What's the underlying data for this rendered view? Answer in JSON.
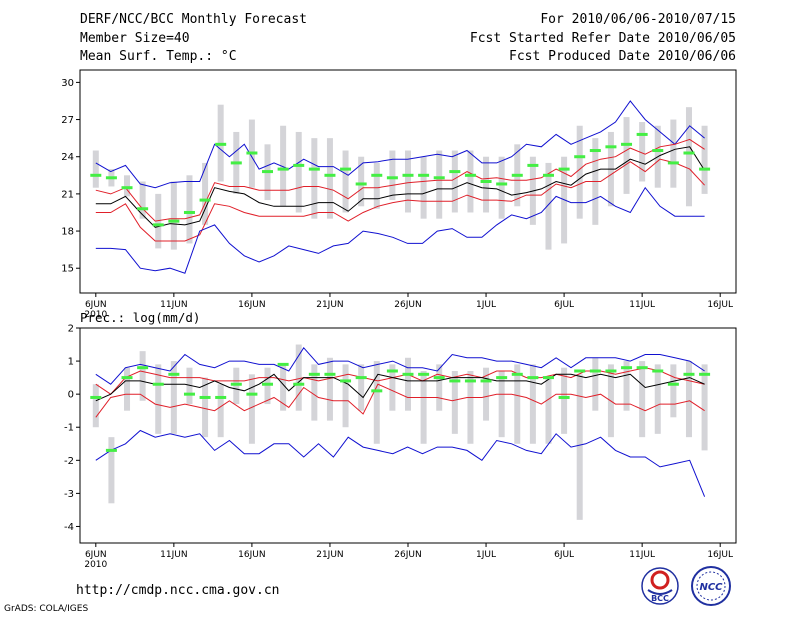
{
  "header": {
    "title": "DERF/NCC/BCC Monthly Forecast",
    "member_size": "Member Size=40",
    "variable": "Mean Surf. Temp.: °C",
    "period": "For 2010/06/06-2010/07/15",
    "fcst_refer": "Fcst Started Refer Date 2010/06/05",
    "fcst_produced": "Fcst Produced Date 2010/06/06"
  },
  "footer": {
    "url": "http://cmdp.ncc.cma.gov.cn",
    "credit": "GrADS: COLA/IGES",
    "logo_bcc": "BCC",
    "logo_ncc": "NCC"
  },
  "colors": {
    "median": "#000000",
    "inner": "#e0202a",
    "outer": "#1010d0",
    "bar": "#d4d4d8",
    "dash": "#44ee44"
  },
  "chart_data": [
    {
      "type": "line",
      "title": "Mean Surf. Temp.: °C",
      "x_tick_labels": [
        "6JUN",
        "11JUN",
        "16JUN",
        "21JUN",
        "26JUN",
        "1JUL",
        "6JUL",
        "11JUL",
        "16JUL"
      ],
      "x_year": "2010",
      "n_days": 40,
      "ylim": [
        13,
        31
      ],
      "yticks": [
        15,
        18,
        21,
        24,
        27,
        30
      ],
      "box_low": [
        21.5,
        21.6,
        20.8,
        19.0,
        16.6,
        16.5,
        17.0,
        18.5,
        22.0,
        21.0,
        21.5,
        20.5,
        20.0,
        19.5,
        19.0,
        19.0,
        19.5,
        20.0,
        19.8,
        20.5,
        19.5,
        19.0,
        19.0,
        19.5,
        19.5,
        19.5,
        19.0,
        20.0,
        18.5,
        16.5,
        17.0,
        19.0,
        18.5,
        20.0,
        21.0,
        22.0,
        21.5,
        21.5,
        20.0,
        21.0
      ],
      "box_high": [
        24.5,
        23.0,
        22.5,
        22.0,
        21.0,
        22.0,
        22.5,
        23.5,
        28.2,
        26.0,
        27.0,
        25.0,
        26.5,
        26.0,
        25.5,
        25.5,
        24.5,
        24.0,
        23.5,
        24.5,
        24.5,
        24.0,
        24.5,
        24.5,
        24.5,
        24.0,
        24.0,
        25.0,
        24.0,
        23.5,
        24.0,
        26.5,
        25.5,
        26.0,
        27.2,
        26.8,
        26.5,
        27.0,
        28.0,
        26.5
      ],
      "ensemble_mean": [
        22.5,
        22.3,
        21.5,
        19.8,
        18.5,
        18.8,
        19.5,
        20.5,
        25.0,
        23.5,
        24.3,
        22.8,
        23.0,
        23.3,
        23.0,
        22.5,
        23.0,
        21.8,
        22.5,
        22.3,
        22.5,
        22.5,
        22.3,
        22.8,
        22.5,
        22.0,
        21.8,
        22.5,
        23.3,
        22.5,
        23.0,
        24.0,
        24.5,
        24.8,
        25.0,
        25.8,
        24.5,
        23.5,
        24.3,
        23.0
      ],
      "series": [
        {
          "name": "max",
          "color": "outer",
          "values": [
            23.5,
            22.8,
            23.3,
            21.8,
            21.5,
            21.9,
            22.0,
            22.0,
            25.0,
            24.0,
            25.0,
            23.0,
            23.5,
            23.0,
            23.8,
            23.2,
            23.2,
            22.5,
            23.5,
            23.6,
            23.8,
            23.8,
            24.0,
            24.2,
            24.0,
            24.5,
            23.5,
            23.5,
            24.0,
            25.0,
            24.8,
            25.8,
            25.0,
            25.5,
            26.0,
            26.8,
            28.5,
            27.0,
            26.0,
            25.0,
            26.5,
            25.5
          ]
        },
        {
          "name": "upper",
          "color": "inner",
          "values": [
            21.3,
            21.0,
            21.5,
            20.0,
            18.8,
            19.0,
            19.0,
            19.3,
            21.9,
            21.6,
            21.6,
            21.3,
            21.3,
            21.3,
            21.6,
            21.6,
            21.3,
            20.6,
            21.5,
            21.5,
            21.7,
            21.9,
            22.0,
            22.1,
            22.1,
            22.8,
            22.2,
            22.3,
            22.1,
            22.1,
            22.3,
            23.0,
            22.4,
            23.4,
            23.8,
            24.0,
            24.7,
            24.2,
            24.8,
            25.0,
            25.4,
            24.6
          ]
        },
        {
          "name": "median",
          "color": "median",
          "values": [
            20.2,
            20.2,
            20.8,
            19.5,
            18.3,
            18.6,
            18.5,
            18.8,
            21.5,
            21.2,
            21.0,
            20.3,
            20.0,
            20.0,
            20.0,
            20.3,
            20.3,
            19.6,
            20.6,
            20.6,
            20.9,
            21.0,
            21.0,
            21.4,
            21.4,
            21.9,
            21.5,
            21.4,
            20.9,
            21.1,
            21.4,
            22.0,
            21.7,
            22.6,
            23.0,
            23.0,
            23.8,
            23.4,
            24.1,
            24.6,
            24.8,
            22.9
          ]
        },
        {
          "name": "lower",
          "color": "inner",
          "values": [
            19.5,
            19.5,
            20.2,
            18.3,
            17.2,
            17.2,
            17.2,
            17.7,
            20.2,
            20.0,
            19.5,
            19.2,
            19.2,
            19.2,
            19.2,
            19.5,
            19.5,
            18.8,
            19.5,
            20.0,
            20.3,
            20.5,
            20.4,
            20.4,
            20.4,
            20.9,
            20.5,
            20.5,
            20.4,
            20.9,
            20.9,
            21.8,
            21.5,
            22.0,
            22.0,
            22.8,
            23.6,
            22.8,
            23.8,
            23.5,
            23.0,
            21.7
          ]
        },
        {
          "name": "min",
          "color": "outer",
          "values": [
            16.6,
            16.6,
            16.5,
            15.0,
            14.8,
            15.0,
            14.6,
            18.0,
            18.5,
            17.0,
            16.0,
            15.5,
            16.0,
            16.8,
            16.5,
            16.2,
            16.8,
            17.0,
            18.0,
            17.8,
            17.5,
            17.0,
            17.0,
            18.0,
            18.2,
            17.5,
            17.5,
            18.5,
            19.3,
            19.0,
            19.5,
            20.8,
            20.3,
            20.3,
            20.8,
            20.0,
            19.5,
            21.5,
            20.0,
            19.2,
            19.2,
            19.2
          ]
        }
      ]
    },
    {
      "type": "line",
      "title": "Prec.: log(mm/d)",
      "x_tick_labels": [
        "6JUN",
        "11JUN",
        "16JUN",
        "21JUN",
        "26JUN",
        "1JUL",
        "6JUL",
        "11JUL",
        "16JUL"
      ],
      "x_year": "2010",
      "n_days": 40,
      "ylim": [
        -4.5,
        2
      ],
      "yticks": [
        -4,
        -3,
        -2,
        -1,
        0,
        1,
        2
      ],
      "box_low": [
        -1.0,
        -3.3,
        -0.5,
        -0.2,
        -1.2,
        -1.2,
        -0.3,
        -1.3,
        -1.3,
        -0.3,
        -1.5,
        -0.3,
        -0.5,
        -0.5,
        -0.8,
        -0.8,
        -1.0,
        -0.5,
        -1.5,
        -0.5,
        -0.5,
        -1.5,
        -0.5,
        -1.2,
        -1.5,
        -0.8,
        -1.3,
        -1.5,
        -1.5,
        -1.5,
        -1.2,
        -3.8,
        -0.5,
        -1.3,
        -0.5,
        -1.3,
        -1.2,
        -0.7,
        -1.3,
        -1.7
      ],
      "box_high": [
        0.3,
        -1.3,
        0.8,
        1.3,
        0.9,
        1.0,
        0.8,
        0.5,
        0.3,
        0.8,
        0.6,
        0.8,
        0.9,
        1.5,
        0.9,
        1.1,
        0.9,
        0.9,
        1.0,
        0.9,
        1.1,
        0.7,
        0.9,
        0.7,
        0.7,
        0.8,
        0.7,
        0.9,
        0.9,
        0.5,
        0.8,
        0.6,
        1.1,
        0.9,
        1.0,
        1.0,
        0.9,
        0.9,
        1.0,
        0.9
      ],
      "ensemble_mean": [
        -0.1,
        -1.7,
        0.5,
        0.8,
        0.3,
        0.6,
        0.0,
        -0.1,
        -0.1,
        0.3,
        0.0,
        0.3,
        0.9,
        0.3,
        0.6,
        0.6,
        0.4,
        0.5,
        0.1,
        0.7,
        0.6,
        0.6,
        0.5,
        0.4,
        0.4,
        0.4,
        0.5,
        0.6,
        0.5,
        0.5,
        -0.1,
        0.7,
        0.7,
        0.7,
        0.8,
        0.8,
        0.7,
        0.3,
        0.6,
        0.6
      ],
      "series": [
        {
          "name": "max",
          "color": "outer",
          "values": [
            0.6,
            0.3,
            0.8,
            0.9,
            0.8,
            0.7,
            1.2,
            0.9,
            0.8,
            1.0,
            1.0,
            0.9,
            0.9,
            0.7,
            1.4,
            0.9,
            1.0,
            1.0,
            0.8,
            0.9,
            1.0,
            0.8,
            0.8,
            0.7,
            1.2,
            1.1,
            1.1,
            1.0,
            1.0,
            0.9,
            0.8,
            1.1,
            0.8,
            1.1,
            1.1,
            1.1,
            1.0,
            1.2,
            1.2,
            1.1,
            1.0,
            0.7
          ]
        },
        {
          "name": "upper",
          "color": "inner",
          "values": [
            0.3,
            0.0,
            0.5,
            0.7,
            0.6,
            0.5,
            0.5,
            0.5,
            0.4,
            0.4,
            0.4,
            0.5,
            0.5,
            0.4,
            0.5,
            0.4,
            0.5,
            0.6,
            0.5,
            0.4,
            0.5,
            0.6,
            0.4,
            0.6,
            0.5,
            0.6,
            0.5,
            0.7,
            0.7,
            0.5,
            0.5,
            0.6,
            0.5,
            0.7,
            0.7,
            0.6,
            0.7,
            0.8,
            0.7,
            0.5,
            0.4,
            0.3
          ]
        },
        {
          "name": "median",
          "color": "median",
          "values": [
            -0.2,
            0.0,
            0.4,
            0.4,
            0.3,
            0.3,
            0.3,
            0.2,
            0.4,
            0.2,
            0.1,
            0.3,
            0.6,
            0.1,
            0.5,
            0.5,
            0.5,
            0.3,
            -0.1,
            0.6,
            0.5,
            0.4,
            0.4,
            0.4,
            0.5,
            0.5,
            0.5,
            0.4,
            0.4,
            0.4,
            0.3,
            0.6,
            0.6,
            0.5,
            0.6,
            0.5,
            0.6,
            0.2,
            0.3,
            0.4,
            0.5,
            0.3
          ]
        },
        {
          "name": "lower",
          "color": "inner",
          "values": [
            -0.7,
            -0.1,
            0.0,
            0.0,
            -0.3,
            -0.4,
            -0.3,
            -0.4,
            -0.5,
            -0.2,
            -0.5,
            -0.3,
            -0.1,
            -0.4,
            0.2,
            -0.1,
            -0.2,
            -0.2,
            -0.6,
            0.3,
            0.1,
            -0.1,
            -0.1,
            -0.1,
            -0.2,
            -0.1,
            -0.1,
            0.0,
            0.0,
            -0.1,
            -0.3,
            0.0,
            0.0,
            -0.1,
            0.0,
            -0.3,
            -0.3,
            -0.5,
            -0.3,
            -0.3,
            -0.2,
            -0.5
          ]
        },
        {
          "name": "min",
          "color": "outer",
          "values": [
            -2.0,
            -1.7,
            -1.5,
            -1.1,
            -1.3,
            -1.2,
            -1.3,
            -1.2,
            -1.7,
            -1.4,
            -1.8,
            -1.8,
            -1.5,
            -1.5,
            -1.9,
            -1.5,
            -1.9,
            -1.3,
            -1.6,
            -1.7,
            -1.8,
            -1.6,
            -1.8,
            -1.6,
            -1.6,
            -1.7,
            -2.0,
            -1.4,
            -1.5,
            -1.7,
            -1.8,
            -1.2,
            -1.6,
            -1.5,
            -1.3,
            -1.7,
            -1.9,
            -1.9,
            -2.2,
            -2.1,
            -2.0,
            -3.1
          ]
        }
      ]
    }
  ]
}
